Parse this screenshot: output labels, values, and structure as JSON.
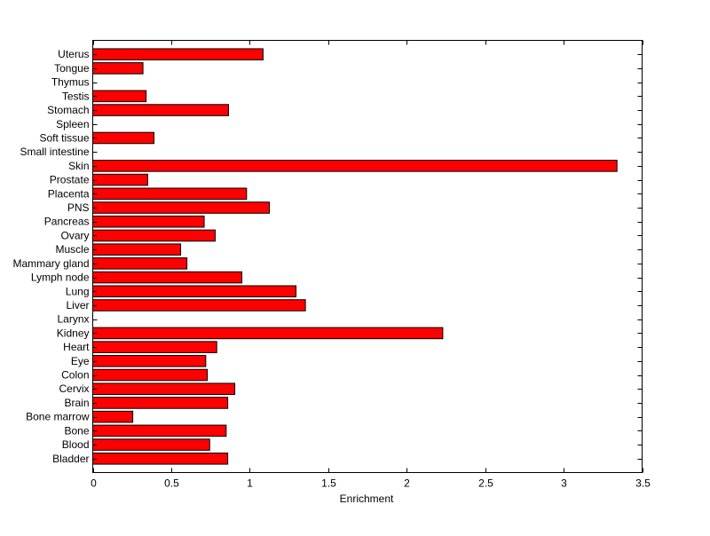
{
  "chart_data": {
    "type": "bar",
    "orientation": "horizontal",
    "title": "",
    "xlabel": "Enrichment",
    "ylabel": "",
    "xlim": [
      0,
      3.5
    ],
    "ylim": [
      0,
      31
    ],
    "xticks": [
      "0",
      "0.5",
      "1",
      "1.5",
      "2",
      "2.5",
      "3",
      "3.5"
    ],
    "grid": false,
    "bar_color": "#ff0000",
    "categories": [
      "Bladder",
      "Blood",
      "Bone",
      "Bone marrow",
      "Brain",
      "Cervix",
      "Colon",
      "Eye",
      "Heart",
      "Kidney",
      "Larynx",
      "Liver",
      "Lung",
      "Lymph node",
      "Mammary gland",
      "Muscle",
      "Ovary",
      "Pancreas",
      "PNS",
      "Placenta",
      "Prostate",
      "Skin",
      "Small intestine",
      "Soft tissue",
      "Spleen",
      "Stomach",
      "Testis",
      "Thymus",
      "Tongue",
      "Uterus"
    ],
    "values": [
      0.86,
      0.745,
      0.85,
      0.255,
      0.86,
      0.905,
      0.73,
      0.72,
      0.79,
      2.23,
      0,
      1.355,
      1.295,
      0.95,
      0.6,
      0.56,
      0.78,
      0.71,
      1.125,
      0.98,
      0.35,
      3.34,
      0,
      0.39,
      0,
      0.865,
      0.34,
      0,
      0.32,
      1.085
    ]
  }
}
